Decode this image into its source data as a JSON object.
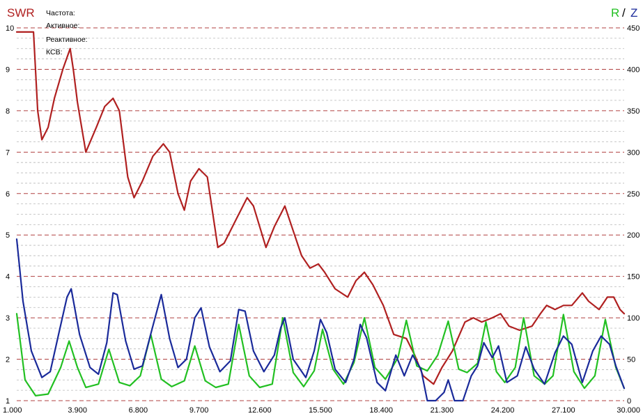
{
  "header": {
    "swr_label": "SWR",
    "r_label": "R",
    "slash": "/",
    "z_label": "Z"
  },
  "readout": {
    "freq": "Частота:",
    "active": "Активное:",
    "reactive": "Реактивное:",
    "swr": "КСВ:"
  },
  "colors": {
    "swr": "#b02020",
    "r": "#22c022",
    "z": "#1a2a9a",
    "major_grid": "#b04040",
    "minor_grid": "#b8b8b8"
  },
  "chart_data": {
    "type": "line",
    "x_ticks": [
      "1.000",
      "3.900",
      "6.800",
      "9.700",
      "12.600",
      "15.500",
      "18.400",
      "21.300",
      "24.200",
      "27.100",
      "30.000"
    ],
    "xlim": [
      1.0,
      30.0
    ],
    "y_left": {
      "label": "SWR",
      "ticks": [
        "1",
        "2",
        "3",
        "4",
        "5",
        "6",
        "7",
        "8",
        "9",
        "10"
      ],
      "lim": [
        1,
        10
      ]
    },
    "y_right": {
      "label": "R / Z",
      "ticks": [
        "0",
        "50",
        "100",
        "150",
        "200",
        "250",
        "300",
        "350",
        "400",
        "450"
      ],
      "lim": [
        0,
        450
      ]
    },
    "series": [
      {
        "name": "SWR",
        "axis": "left",
        "color": "#b02020",
        "points": [
          [
            1.0,
            9.9
          ],
          [
            1.8,
            9.9
          ],
          [
            2.0,
            8.0
          ],
          [
            2.2,
            7.3
          ],
          [
            2.5,
            7.6
          ],
          [
            2.8,
            8.3
          ],
          [
            3.2,
            9.0
          ],
          [
            3.55,
            9.5
          ],
          [
            3.7,
            9.0
          ],
          [
            3.9,
            8.2
          ],
          [
            4.3,
            7.0
          ],
          [
            4.8,
            7.6
          ],
          [
            5.2,
            8.1
          ],
          [
            5.6,
            8.3
          ],
          [
            5.9,
            8.0
          ],
          [
            6.3,
            6.4
          ],
          [
            6.6,
            5.9
          ],
          [
            7.0,
            6.3
          ],
          [
            7.5,
            6.9
          ],
          [
            8.0,
            7.2
          ],
          [
            8.3,
            7.0
          ],
          [
            8.7,
            6.0
          ],
          [
            9.0,
            5.6
          ],
          [
            9.3,
            6.3
          ],
          [
            9.7,
            6.6
          ],
          [
            10.1,
            6.4
          ],
          [
            10.6,
            4.7
          ],
          [
            10.9,
            4.8
          ],
          [
            11.5,
            5.4
          ],
          [
            12.0,
            5.9
          ],
          [
            12.3,
            5.7
          ],
          [
            12.9,
            4.7
          ],
          [
            13.3,
            5.2
          ],
          [
            13.8,
            5.7
          ],
          [
            14.2,
            5.1
          ],
          [
            14.6,
            4.5
          ],
          [
            15.0,
            4.2
          ],
          [
            15.4,
            4.3
          ],
          [
            15.7,
            4.1
          ],
          [
            16.2,
            3.7
          ],
          [
            16.8,
            3.5
          ],
          [
            17.2,
            3.9
          ],
          [
            17.6,
            4.1
          ],
          [
            18.0,
            3.8
          ],
          [
            18.5,
            3.3
          ],
          [
            19.0,
            2.6
          ],
          [
            19.6,
            2.5
          ],
          [
            20.0,
            2.1
          ],
          [
            20.4,
            1.6
          ],
          [
            20.9,
            1.4
          ],
          [
            21.3,
            1.8
          ],
          [
            21.8,
            2.2
          ],
          [
            22.4,
            2.9
          ],
          [
            22.8,
            3.0
          ],
          [
            23.2,
            2.9
          ],
          [
            23.7,
            3.0
          ],
          [
            24.1,
            3.1
          ],
          [
            24.5,
            2.8
          ],
          [
            25.0,
            2.7
          ],
          [
            25.6,
            2.8
          ],
          [
            26.0,
            3.1
          ],
          [
            26.3,
            3.3
          ],
          [
            26.7,
            3.2
          ],
          [
            27.1,
            3.3
          ],
          [
            27.5,
            3.3
          ],
          [
            28.0,
            3.6
          ],
          [
            28.3,
            3.4
          ],
          [
            28.8,
            3.2
          ],
          [
            29.2,
            3.5
          ],
          [
            29.5,
            3.5
          ],
          [
            29.8,
            3.2
          ],
          [
            30.0,
            3.1
          ]
        ]
      },
      {
        "name": "R",
        "axis": "right",
        "color": "#22c022",
        "points": [
          [
            1.0,
            105
          ],
          [
            1.4,
            25
          ],
          [
            1.9,
            6
          ],
          [
            2.5,
            8
          ],
          [
            3.1,
            40
          ],
          [
            3.5,
            72
          ],
          [
            3.9,
            40
          ],
          [
            4.3,
            16
          ],
          [
            4.9,
            20
          ],
          [
            5.4,
            62
          ],
          [
            5.9,
            22
          ],
          [
            6.4,
            18
          ],
          [
            6.9,
            30
          ],
          [
            7.4,
            80
          ],
          [
            7.9,
            26
          ],
          [
            8.4,
            17
          ],
          [
            9.0,
            24
          ],
          [
            9.5,
            66
          ],
          [
            10.0,
            24
          ],
          [
            10.5,
            16
          ],
          [
            11.1,
            20
          ],
          [
            11.6,
            92
          ],
          [
            12.1,
            30
          ],
          [
            12.6,
            16
          ],
          [
            13.2,
            20
          ],
          [
            13.7,
            100
          ],
          [
            14.2,
            34
          ],
          [
            14.7,
            17
          ],
          [
            15.2,
            36
          ],
          [
            15.6,
            86
          ],
          [
            16.1,
            38
          ],
          [
            16.6,
            20
          ],
          [
            17.1,
            46
          ],
          [
            17.6,
            100
          ],
          [
            18.1,
            40
          ],
          [
            18.6,
            26
          ],
          [
            19.2,
            52
          ],
          [
            19.6,
            97
          ],
          [
            20.1,
            42
          ],
          [
            20.6,
            36
          ],
          [
            21.1,
            55
          ],
          [
            21.6,
            96
          ],
          [
            22.1,
            38
          ],
          [
            22.5,
            34
          ],
          [
            23.0,
            45
          ],
          [
            23.4,
            95
          ],
          [
            23.9,
            35
          ],
          [
            24.3,
            22
          ],
          [
            24.8,
            40
          ],
          [
            25.2,
            100
          ],
          [
            25.7,
            30
          ],
          [
            26.2,
            20
          ],
          [
            26.6,
            30
          ],
          [
            27.1,
            104
          ],
          [
            27.6,
            35
          ],
          [
            28.1,
            15
          ],
          [
            28.6,
            30
          ],
          [
            29.1,
            98
          ],
          [
            29.6,
            40
          ],
          [
            30.0,
            15
          ]
        ]
      },
      {
        "name": "Z",
        "axis": "right",
        "color": "#1a2a9a",
        "points": [
          [
            1.0,
            195
          ],
          [
            1.3,
            120
          ],
          [
            1.7,
            60
          ],
          [
            2.2,
            28
          ],
          [
            2.6,
            35
          ],
          [
            3.0,
            80
          ],
          [
            3.4,
            125
          ],
          [
            3.6,
            135
          ],
          [
            4.0,
            80
          ],
          [
            4.5,
            40
          ],
          [
            4.9,
            32
          ],
          [
            5.3,
            70
          ],
          [
            5.6,
            130
          ],
          [
            5.8,
            128
          ],
          [
            6.2,
            72
          ],
          [
            6.6,
            38
          ],
          [
            7.0,
            42
          ],
          [
            7.5,
            90
          ],
          [
            7.9,
            128
          ],
          [
            8.3,
            75
          ],
          [
            8.7,
            40
          ],
          [
            9.1,
            50
          ],
          [
            9.5,
            100
          ],
          [
            9.8,
            112
          ],
          [
            10.2,
            65
          ],
          [
            10.7,
            35
          ],
          [
            11.2,
            48
          ],
          [
            11.6,
            110
          ],
          [
            11.9,
            108
          ],
          [
            12.3,
            60
          ],
          [
            12.8,
            35
          ],
          [
            13.3,
            55
          ],
          [
            13.6,
            88
          ],
          [
            13.8,
            100
          ],
          [
            14.2,
            50
          ],
          [
            14.8,
            28
          ],
          [
            15.2,
            60
          ],
          [
            15.5,
            98
          ],
          [
            15.8,
            82
          ],
          [
            16.2,
            38
          ],
          [
            16.7,
            22
          ],
          [
            17.1,
            50
          ],
          [
            17.4,
            92
          ],
          [
            17.7,
            76
          ],
          [
            18.2,
            22
          ],
          [
            18.6,
            12
          ],
          [
            19.1,
            55
          ],
          [
            19.5,
            30
          ],
          [
            19.9,
            55
          ],
          [
            20.3,
            38
          ],
          [
            20.6,
            0
          ],
          [
            21.0,
            0
          ],
          [
            21.4,
            10
          ],
          [
            21.6,
            25
          ],
          [
            21.9,
            0
          ],
          [
            22.3,
            0
          ],
          [
            22.7,
            30
          ],
          [
            23.0,
            42
          ],
          [
            23.3,
            70
          ],
          [
            23.7,
            52
          ],
          [
            24.0,
            66
          ],
          [
            24.4,
            22
          ],
          [
            24.9,
            30
          ],
          [
            25.3,
            65
          ],
          [
            25.7,
            38
          ],
          [
            26.2,
            20
          ],
          [
            26.7,
            58
          ],
          [
            27.1,
            78
          ],
          [
            27.5,
            68
          ],
          [
            28.0,
            22
          ],
          [
            28.5,
            60
          ],
          [
            28.9,
            78
          ],
          [
            29.3,
            68
          ],
          [
            29.6,
            42
          ],
          [
            30.0,
            15
          ]
        ]
      }
    ]
  }
}
